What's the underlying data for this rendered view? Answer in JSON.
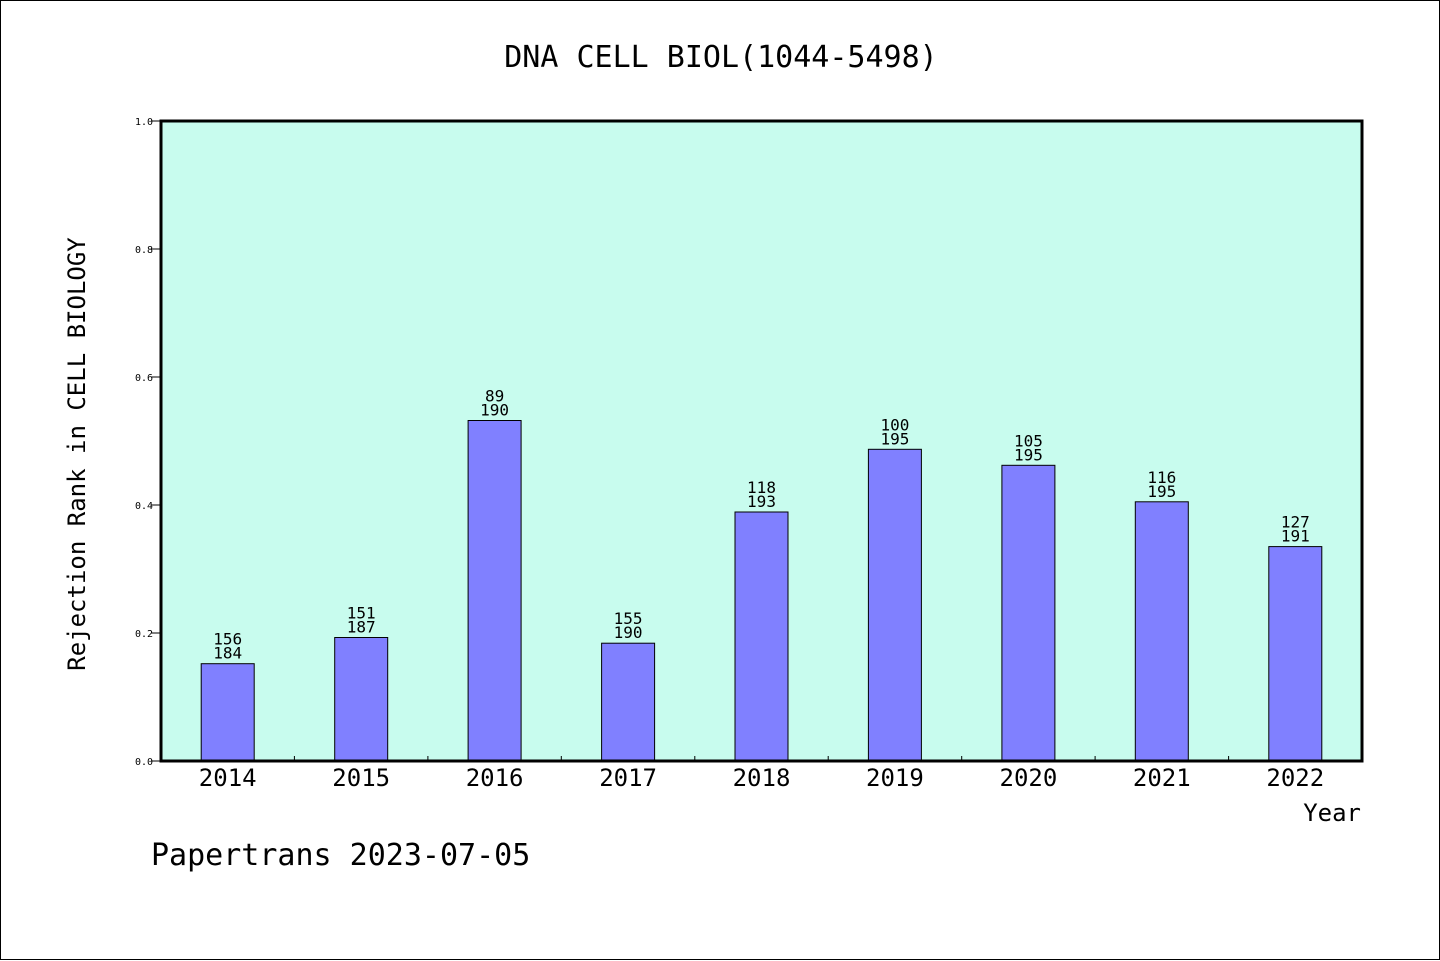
{
  "chart_data": {
    "type": "bar",
    "title": "DNA CELL BIOL(1044-5498)",
    "xlabel": "Year",
    "ylabel": "Rejection Rank in CELL BIOLOGY",
    "categories": [
      "2014",
      "2015",
      "2016",
      "2017",
      "2018",
      "2019",
      "2020",
      "2021",
      "2022"
    ],
    "values": [
      0.152,
      0.193,
      0.532,
      0.184,
      0.389,
      0.487,
      0.462,
      0.405,
      0.335
    ],
    "bar_labels": [
      [
        "156",
        "184"
      ],
      [
        "151",
        "187"
      ],
      [
        "89",
        "190"
      ],
      [
        "155",
        "190"
      ],
      [
        "118",
        "193"
      ],
      [
        "100",
        "195"
      ],
      [
        "105",
        "195"
      ],
      [
        "116",
        "195"
      ],
      [
        "127",
        "191"
      ]
    ],
    "ylim": [
      0,
      1.0
    ],
    "yticks": [
      "0.0",
      "0.2",
      "0.4",
      "0.6",
      "0.8",
      "1.0"
    ],
    "grid": false,
    "colors": {
      "plot_background": "#c8fcee",
      "bar_fill": "#8080ff",
      "bar_stroke": "#000000",
      "axis": "#000000"
    }
  },
  "footer": {
    "credit": "Papertrans 2023-07-05"
  }
}
